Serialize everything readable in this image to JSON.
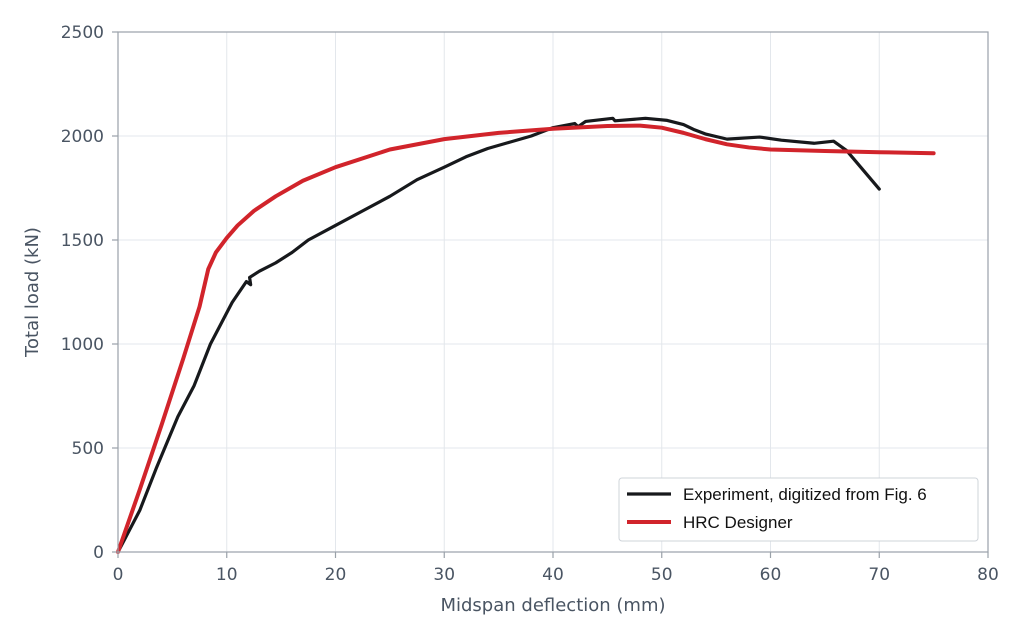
{
  "chart_data": {
    "type": "line",
    "title": "",
    "xlabel": "Midspan deflection (mm)",
    "ylabel": "Total load (kN)",
    "xlim": [
      0,
      80
    ],
    "ylim": [
      0,
      2500
    ],
    "xticks": [
      0,
      10,
      20,
      30,
      40,
      50,
      60,
      70,
      80
    ],
    "yticks": [
      0,
      500,
      1000,
      1500,
      2000,
      2500
    ],
    "grid": true,
    "legend_position": "bottom-right",
    "series": [
      {
        "name": "Experiment, digitized from Fig. 6",
        "color": "#17191c",
        "points": [
          [
            0,
            0
          ],
          [
            2,
            200
          ],
          [
            3.5,
            400
          ],
          [
            5.5,
            650
          ],
          [
            7,
            800
          ],
          [
            8.5,
            1000
          ],
          [
            10.5,
            1200
          ],
          [
            11.8,
            1300
          ],
          [
            12.2,
            1285
          ],
          [
            12.1,
            1320
          ],
          [
            13,
            1350
          ],
          [
            14.5,
            1390
          ],
          [
            16,
            1440
          ],
          [
            17.5,
            1500
          ],
          [
            20,
            1570
          ],
          [
            22.5,
            1640
          ],
          [
            25,
            1710
          ],
          [
            27.5,
            1790
          ],
          [
            30,
            1850
          ],
          [
            32,
            1900
          ],
          [
            34,
            1940
          ],
          [
            36,
            1970
          ],
          [
            38,
            2000
          ],
          [
            40,
            2040
          ],
          [
            42,
            2060
          ],
          [
            42.3,
            2045
          ],
          [
            43,
            2070
          ],
          [
            45.5,
            2085
          ],
          [
            45.7,
            2073
          ],
          [
            48.5,
            2085
          ],
          [
            50.5,
            2075
          ],
          [
            52,
            2055
          ],
          [
            53,
            2030
          ],
          [
            54,
            2010
          ],
          [
            56,
            1985
          ],
          [
            59,
            1995
          ],
          [
            61,
            1980
          ],
          [
            64,
            1965
          ],
          [
            65.8,
            1975
          ],
          [
            67,
            1930
          ],
          [
            70,
            1745
          ]
        ]
      },
      {
        "name": "HRC Designer",
        "color": "#d1242b",
        "points": [
          [
            0,
            0
          ],
          [
            2,
            300
          ],
          [
            4,
            610
          ],
          [
            6,
            930
          ],
          [
            7.5,
            1180
          ],
          [
            8.3,
            1360
          ],
          [
            9,
            1440
          ],
          [
            10,
            1510
          ],
          [
            11,
            1570
          ],
          [
            12.5,
            1640
          ],
          [
            14.5,
            1710
          ],
          [
            17,
            1785
          ],
          [
            20,
            1850
          ],
          [
            25,
            1935
          ],
          [
            30,
            1985
          ],
          [
            35,
            2015
          ],
          [
            40,
            2035
          ],
          [
            45,
            2048
          ],
          [
            48,
            2050
          ],
          [
            50,
            2040
          ],
          [
            52,
            2015
          ],
          [
            54,
            1985
          ],
          [
            56,
            1960
          ],
          [
            58,
            1945
          ],
          [
            60,
            1935
          ],
          [
            65,
            1928
          ],
          [
            70,
            1922
          ],
          [
            75,
            1917
          ]
        ]
      }
    ]
  }
}
